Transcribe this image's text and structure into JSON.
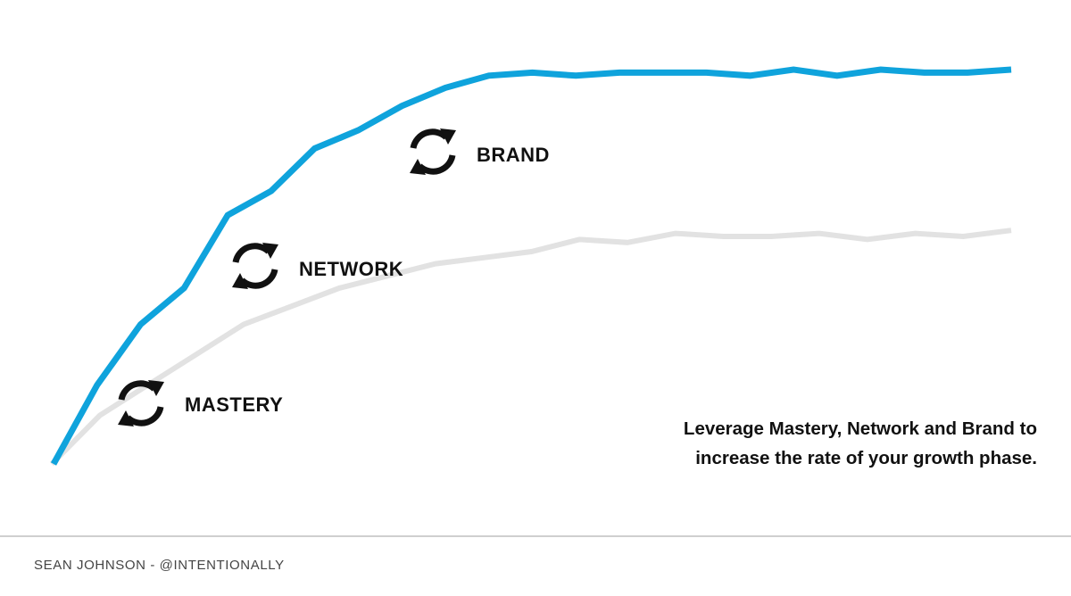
{
  "chart_data": {
    "type": "line",
    "title": "",
    "xlabel": "",
    "ylabel": "",
    "grid": false,
    "series": [
      {
        "color": "#0fa3dc",
        "values": [
          0,
          13,
          23,
          29,
          41,
          45,
          52,
          55,
          59,
          62,
          64,
          64.5,
          64,
          64.5,
          64.5,
          64.5,
          64,
          65,
          64,
          65,
          64.5,
          64.5,
          65
        ]
      },
      {
        "color": "#e2e2e2",
        "values": [
          0,
          8,
          13,
          18,
          23,
          26,
          29,
          31,
          33,
          34,
          35,
          37,
          36.5,
          38,
          37.5,
          37.5,
          38,
          37,
          38,
          37.5,
          38.5
        ]
      }
    ],
    "annotations": [
      {
        "id": "mastery",
        "label": "MASTERY",
        "icon": "refresh-icon"
      },
      {
        "id": "network",
        "label": "NETWORK",
        "icon": "refresh-icon"
      },
      {
        "id": "brand",
        "label": "BRAND",
        "icon": "refresh-icon"
      }
    ]
  },
  "caption": {
    "line1": "Leverage Mastery, Network and Brand to",
    "line2": "increase the rate of your growth phase."
  },
  "footer": {
    "credit": "SEAN JOHNSON - @INTENTIONALLY"
  }
}
